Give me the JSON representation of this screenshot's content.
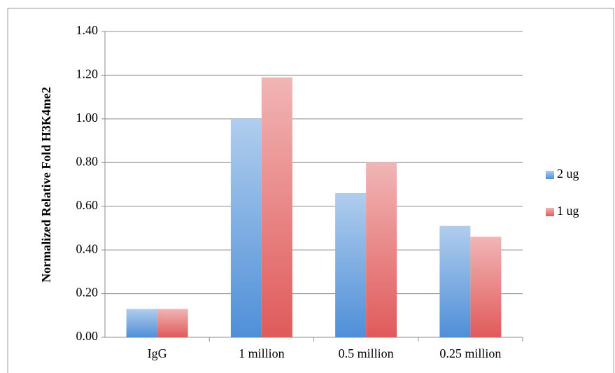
{
  "chart_data": {
    "type": "bar",
    "y_label": "Normalized Relative Fold H3K4me2",
    "categories": [
      "IgG",
      "1 million",
      "0.5 million",
      "0.25 million"
    ],
    "series": [
      {
        "name": "2 ug",
        "color": "#4f8fd8",
        "values": [
          0.13,
          1.0,
          0.66,
          0.51
        ]
      },
      {
        "name": "1 ug",
        "color": "#e05a5a",
        "values": [
          0.13,
          1.19,
          0.8,
          0.46
        ]
      }
    ],
    "ylim": [
      0,
      1.4
    ],
    "yticks": [
      {
        "value": 0,
        "label": "0.00"
      },
      {
        "value": 0.2,
        "label": "0.20"
      },
      {
        "value": 0.4,
        "label": "0.40"
      },
      {
        "value": 0.6,
        "label": "0.60"
      },
      {
        "value": 0.8,
        "label": "0.80"
      },
      {
        "value": 1.0,
        "label": "1.00"
      },
      {
        "value": 1.2,
        "label": "1.20"
      },
      {
        "value": 1.4,
        "label": "1.40"
      }
    ],
    "grid": true,
    "legend": "right"
  }
}
